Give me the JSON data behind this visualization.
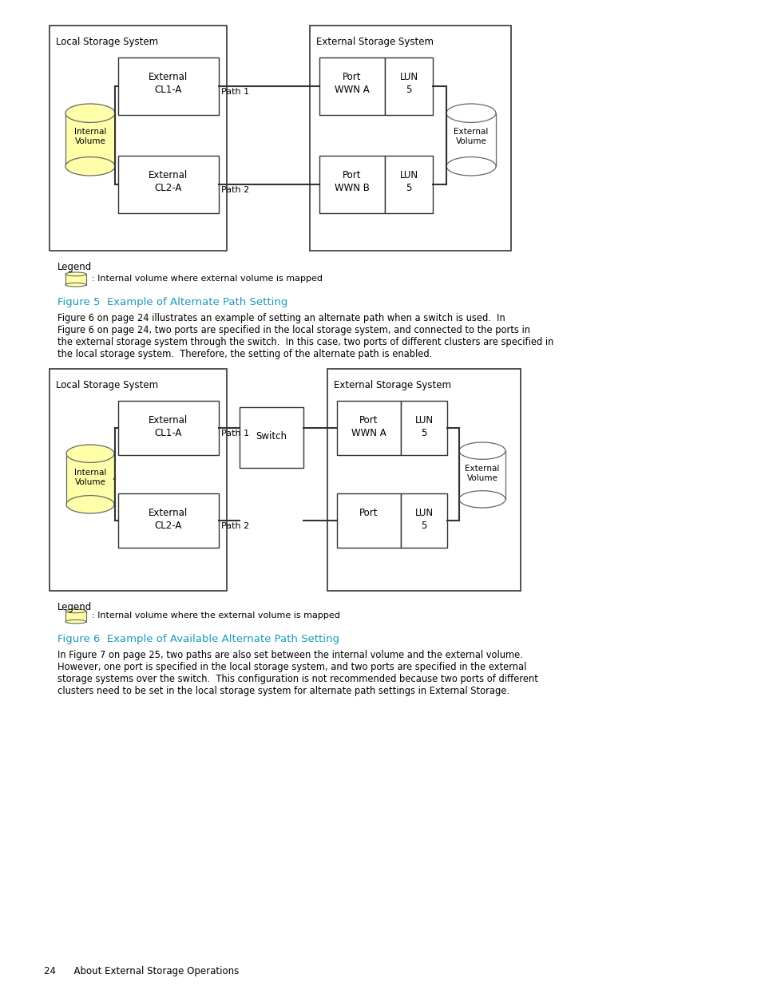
{
  "bg_color": "#ffffff",
  "cyan_color": "#1a9abf",
  "fig_width": 9.54,
  "fig_height": 12.35,
  "figure5_title": "Figure 5  Example of Alternate Path Setting",
  "figure6_title": "Figure 6  Example of Available Alternate Path Setting",
  "fig5_body_lines": [
    "Figure 6 on page 24 illustrates an example of setting an alternate path when a switch is used.  In",
    "Figure 6 on page 24, two ports are specified in the local storage system, and connected to the ports in",
    "the external storage system through the switch.  In this case, two ports of different clusters are specified in",
    "the local storage system.  Therefore, the setting of the alternate path is enabled."
  ],
  "fig6_body_lines": [
    "In Figure 7 on page 25, two paths are also set between the internal volume and the external volume.",
    "However, one port is specified in the local storage system, and two ports are specified in the external",
    "storage systems over the switch.  This configuration is not recommended because two ports of different",
    "clusters need to be set in the local storage system for alternate path settings in External Storage."
  ],
  "legend_text1": ": Internal volume where external volume is mapped",
  "legend_text2": ": Internal volume where the external volume is mapped",
  "footer_text": "24      About External Storage Operations"
}
